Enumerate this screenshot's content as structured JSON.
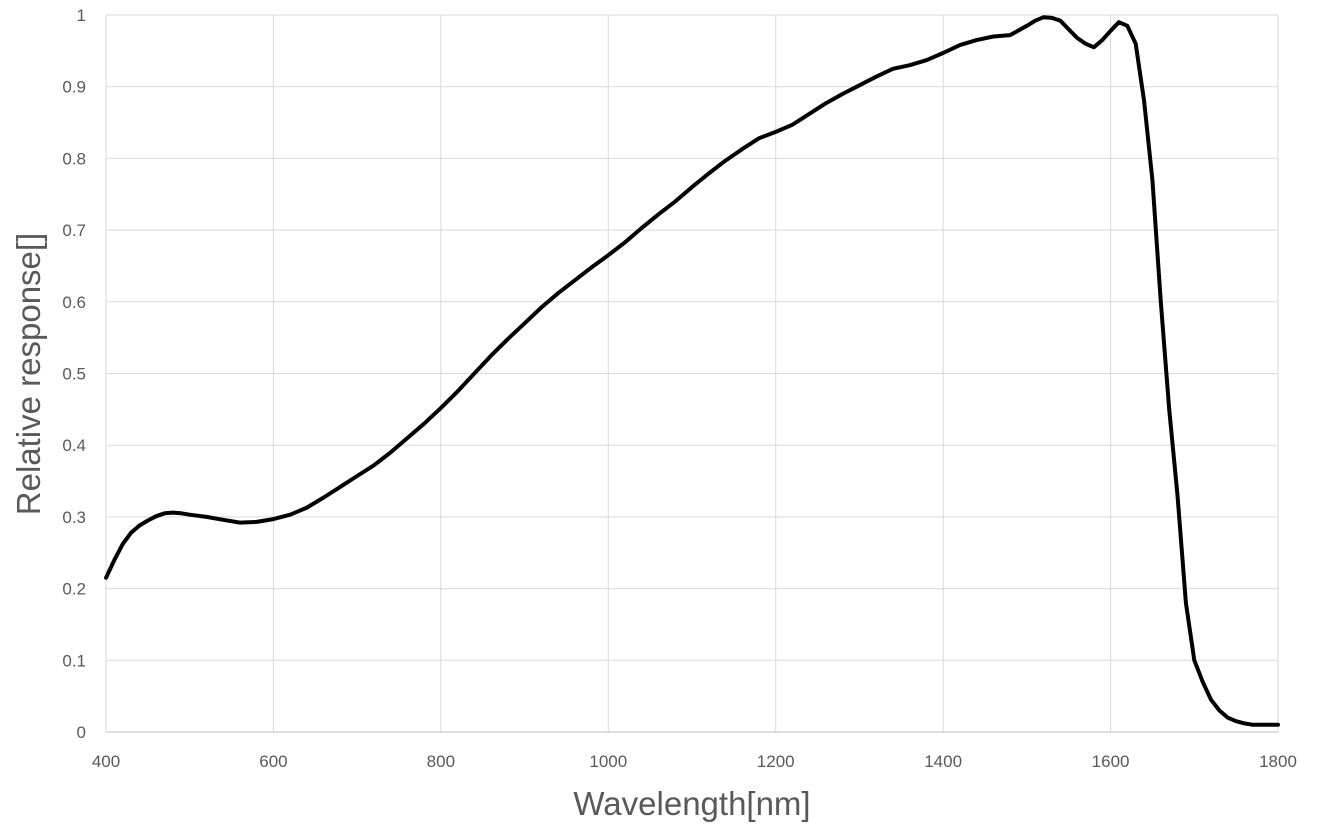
{
  "chart_data": {
    "type": "line",
    "title": "",
    "xlabel": "Wavelength[nm]",
    "ylabel": "Relative response[]",
    "xlim": [
      400,
      1800
    ],
    "ylim": [
      0,
      1
    ],
    "x_ticks": [
      "400",
      "600",
      "800",
      "1000",
      "1200",
      "1400",
      "1600",
      "1800"
    ],
    "y_ticks": [
      "0",
      "0.1",
      "0.2",
      "0.3",
      "0.4",
      "0.5",
      "0.6",
      "0.7",
      "0.8",
      "0.9",
      "1"
    ],
    "grid": true,
    "legend": "none",
    "line_color": "#000000",
    "grid_color": "#d9d9d9",
    "series": [
      {
        "x": [
          400,
          410,
          420,
          430,
          440,
          450,
          460,
          470,
          480,
          490,
          500,
          520,
          540,
          560,
          580,
          600,
          620,
          640,
          660,
          680,
          700,
          720,
          740,
          760,
          780,
          800,
          820,
          840,
          860,
          880,
          900,
          920,
          940,
          960,
          980,
          1000,
          1020,
          1040,
          1060,
          1080,
          1100,
          1120,
          1140,
          1160,
          1180,
          1200,
          1220,
          1240,
          1260,
          1280,
          1300,
          1320,
          1340,
          1360,
          1380,
          1400,
          1420,
          1440,
          1460,
          1480,
          1500,
          1510,
          1520,
          1530,
          1540,
          1550,
          1560,
          1570,
          1580,
          1590,
          1600,
          1610,
          1620,
          1630,
          1635,
          1640,
          1650,
          1660,
          1670,
          1680,
          1690,
          1700,
          1710,
          1720,
          1730,
          1740,
          1750,
          1760,
          1770,
          1780,
          1790,
          1800
        ],
        "values": [
          0.215,
          0.24,
          0.262,
          0.278,
          0.288,
          0.295,
          0.301,
          0.305,
          0.306,
          0.305,
          0.303,
          0.3,
          0.296,
          0.292,
          0.293,
          0.297,
          0.303,
          0.313,
          0.327,
          0.342,
          0.357,
          0.372,
          0.39,
          0.41,
          0.43,
          0.452,
          0.475,
          0.5,
          0.525,
          0.548,
          0.57,
          0.592,
          0.612,
          0.63,
          0.648,
          0.665,
          0.683,
          0.703,
          0.722,
          0.74,
          0.76,
          0.779,
          0.797,
          0.813,
          0.828,
          0.837,
          0.847,
          0.862,
          0.877,
          0.89,
          0.902,
          0.914,
          0.925,
          0.93,
          0.937,
          0.947,
          0.958,
          0.965,
          0.97,
          0.972,
          0.985,
          0.992,
          0.997,
          0.996,
          0.992,
          0.98,
          0.968,
          0.96,
          0.955,
          0.965,
          0.978,
          0.99,
          0.985,
          0.96,
          0.92,
          0.88,
          0.77,
          0.6,
          0.45,
          0.33,
          0.18,
          0.1,
          0.07,
          0.045,
          0.03,
          0.02,
          0.015,
          0.012,
          0.01,
          0.01,
          0.01,
          0.01
        ]
      }
    ]
  }
}
